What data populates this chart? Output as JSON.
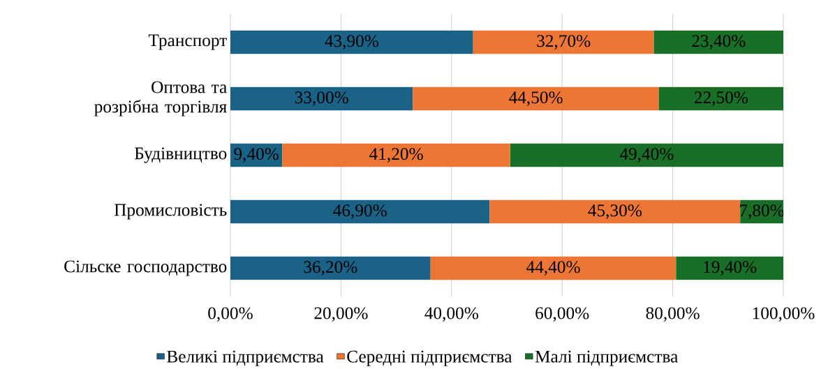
{
  "chart_data": {
    "type": "bar",
    "orientation": "horizontal",
    "stacked": true,
    "categories": [
      "Транспорт",
      "Оптова та розрібна торгівля",
      "Будівництво",
      "Промисловість",
      "Сільске господарство"
    ],
    "series": [
      {
        "name": "Великі підприємства",
        "color": "#1b6386",
        "values": [
          43.9,
          33.0,
          9.4,
          46.9,
          36.2
        ],
        "value_labels": [
          "43,90%",
          "33,00%",
          "9,40%",
          "46,90%",
          "36,20%"
        ]
      },
      {
        "name": "Середні підприємства",
        "color": "#ed7634",
        "values": [
          32.7,
          44.5,
          41.2,
          45.3,
          44.4
        ],
        "value_labels": [
          "32,70%",
          "44,50%",
          "41,20%",
          "45,30%",
          "44,40%"
        ]
      },
      {
        "name": "Малі підприємства",
        "color": "#1a6f28",
        "values": [
          23.4,
          22.5,
          49.4,
          7.8,
          19.4
        ],
        "value_labels": [
          "23,40%",
          "22,50%",
          "49,40%",
          "7,80%",
          "19,40%"
        ]
      }
    ],
    "xlim": [
      0,
      100
    ],
    "xticks": [
      {
        "value": 0,
        "label": "0,00%"
      },
      {
        "value": 20,
        "label": "20,00%"
      },
      {
        "value": 40,
        "label": "40,00%"
      },
      {
        "value": 60,
        "label": "60,00%"
      },
      {
        "value": 80,
        "label": "80,00%"
      },
      {
        "value": 100,
        "label": "100,00%"
      }
    ],
    "grid": "x",
    "legend": "bottom"
  }
}
